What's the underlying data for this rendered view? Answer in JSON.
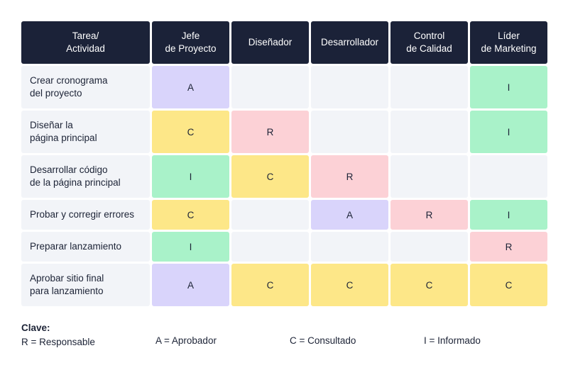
{
  "headers": [
    "Tarea/\nActividad",
    "Jefe\nde Proyecto",
    "Diseñador",
    "Desarrollador",
    "Control\nde Calidad",
    "Líder\nde Marketing"
  ],
  "rows": [
    {
      "task": "Crear cronograma\ndel proyecto",
      "cells": [
        "A",
        "",
        "",
        "",
        "I"
      ]
    },
    {
      "task": "Diseñar la\npágina principal",
      "cells": [
        "C",
        "R",
        "",
        "",
        "I"
      ]
    },
    {
      "task": "Desarrollar código\nde la página principal",
      "cells": [
        "I",
        "C",
        "R",
        "",
        ""
      ]
    },
    {
      "task": "Probar y corregir errores",
      "cells": [
        "C",
        "",
        "A",
        "R",
        "I"
      ]
    },
    {
      "task": "Preparar lanzamiento",
      "cells": [
        "I",
        "",
        "",
        "",
        "R"
      ]
    },
    {
      "task": "Aprobar sitio final\npara lanzamiento",
      "cells": [
        "A",
        "C",
        "C",
        "C",
        "C"
      ]
    }
  ],
  "legend": {
    "title": "Clave:",
    "r": "R = Responsable",
    "a": "A = Aprobador",
    "c": "C = Consultado",
    "i": "I = Informado"
  },
  "colors": {
    "header_bg": "#1b2238",
    "empty": "#f2f4f8",
    "A": "#d9d4fb",
    "C": "#fde788",
    "R": "#fcd1d6",
    "I": "#a9f2c9"
  }
}
